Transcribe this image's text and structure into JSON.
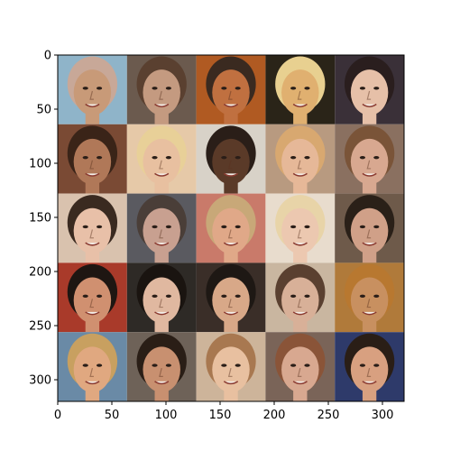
{
  "chart_data": {
    "type": "image-grid",
    "xlim": [
      0,
      320
    ],
    "ylim": [
      320,
      0
    ],
    "x_ticks": [
      0,
      50,
      100,
      150,
      200,
      250,
      300
    ],
    "y_ticks": [
      0,
      50,
      100,
      150,
      200,
      250,
      300
    ],
    "grid": false,
    "rows": 5,
    "cols": 5,
    "tile_size": 64,
    "tile_colors": [
      [
        "#8fb4c9",
        "#6b5a4e",
        "#b05a22",
        "#2a2418",
        "#3a3038"
      ],
      [
        "#7a4a34",
        "#e6c9a8",
        "#d8d2c8",
        "#b89a80",
        "#8a7060"
      ],
      [
        "#d9c2ae",
        "#5a5a60",
        "#c97a6a",
        "#e8dccd",
        "#6e5a4a"
      ],
      [
        "#a93a2a",
        "#2e2a26",
        "#3a2e28",
        "#c9b6a0",
        "#b07a3a"
      ],
      [
        "#6a8aa6",
        "#6e6258",
        "#cdb49a",
        "#7a6458",
        "#2e3a6a"
      ]
    ],
    "skin_colors": [
      [
        "#c89a78",
        "#c49a80",
        "#c07040",
        "#e0b070",
        "#e6c0a8"
      ],
      [
        "#b07858",
        "#e8c0a0",
        "#5a3a28",
        "#e6b898",
        "#d8a890"
      ],
      [
        "#e8c0a8",
        "#c8a090",
        "#e0a888",
        "#ecc8b0",
        "#d0a088"
      ],
      [
        "#d09070",
        "#e0b8a0",
        "#d8a888",
        "#d8b098",
        "#c89060"
      ],
      [
        "#e0a880",
        "#c89070",
        "#e8c0a0",
        "#d8a890",
        "#d8a080"
      ]
    ],
    "hair_colors": [
      [
        "#c8a898",
        "#5a4030",
        "#3a2a20",
        "#e8d090",
        "#2a1e1e"
      ],
      [
        "#3a2418",
        "#e8d098",
        "#2a1e18",
        "#d8a870",
        "#7a5438"
      ],
      [
        "#3a2a20",
        "#4a3e38",
        "#c8a878",
        "#e8d4a8",
        "#2a2018"
      ],
      [
        "#1e1612",
        "#1a1410",
        "#1e1814",
        "#5a4030",
        "#b87830"
      ],
      [
        "#c8a060",
        "#2a1e16",
        "#a87850",
        "#8a5438",
        "#2a1e16"
      ]
    ]
  }
}
